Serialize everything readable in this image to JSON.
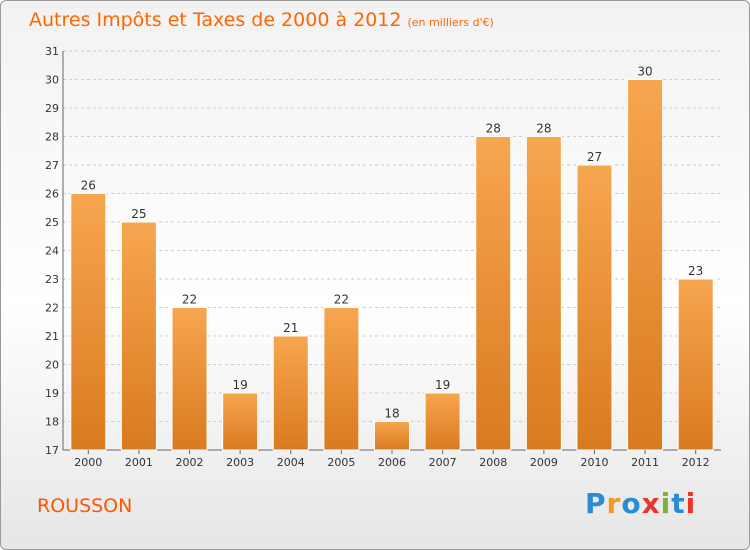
{
  "header": {
    "title": "Autres Impôts et Taxes de 2000 à 2012",
    "unit": "(en milliers d'€)"
  },
  "footer": {
    "commune": "ROUSSON",
    "brand": [
      "P",
      "r",
      "o",
      "x",
      "i",
      "t",
      "i"
    ]
  },
  "colors": {
    "accent": "#ff6600",
    "bar_top": "#f7a650",
    "bar_bottom": "#d97a1f",
    "grid": "#cccccc",
    "axis_text": "#333333",
    "brand": [
      "#2a8bd6",
      "#f39a1e",
      "#2a8bd6",
      "#e8352d",
      "#7fb03a",
      "#2a8bd6",
      "#e8352d"
    ]
  },
  "chart_data": {
    "type": "bar",
    "title": "Autres Impôts et Taxes de 2000 à 2012",
    "subtitle": "(en milliers d'€)",
    "xlabel": "",
    "ylabel": "",
    "categories": [
      "2000",
      "2001",
      "2002",
      "2003",
      "2004",
      "2005",
      "2006",
      "2007",
      "2008",
      "2009",
      "2010",
      "2011",
      "2012"
    ],
    "values": [
      26,
      25,
      22,
      19,
      21,
      22,
      18,
      19,
      28,
      28,
      27,
      30,
      23
    ],
    "ylim": [
      17,
      31
    ],
    "yticks": [
      17,
      18,
      19,
      20,
      21,
      22,
      23,
      24,
      25,
      26,
      27,
      28,
      29,
      30,
      31
    ],
    "grid": true,
    "data_labels": true
  }
}
